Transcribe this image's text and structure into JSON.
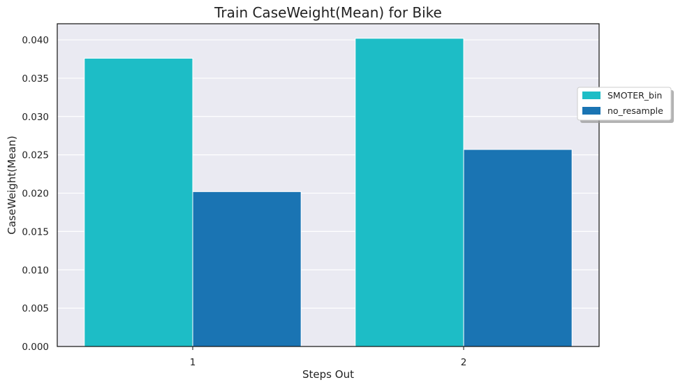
{
  "chart_data": {
    "type": "bar",
    "title": "Train CaseWeight(Mean) for Bike",
    "xlabel": "Steps Out",
    "ylabel": "CaseWeight(Mean)",
    "categories": [
      "1",
      "2"
    ],
    "series": [
      {
        "name": "SMOTER_bin",
        "values": [
          0.0376,
          0.0402
        ],
        "color": "#1dbdc6"
      },
      {
        "name": "no_resample",
        "values": [
          0.0202,
          0.0257
        ],
        "color": "#1a74b3"
      }
    ],
    "ylim": [
      0,
      0.0421
    ],
    "yticks": [
      "0.000",
      "0.005",
      "0.010",
      "0.015",
      "0.020",
      "0.025",
      "0.030",
      "0.035",
      "0.040"
    ],
    "grid": true,
    "legend_position": "right",
    "background_color": "#eaeaf2"
  }
}
